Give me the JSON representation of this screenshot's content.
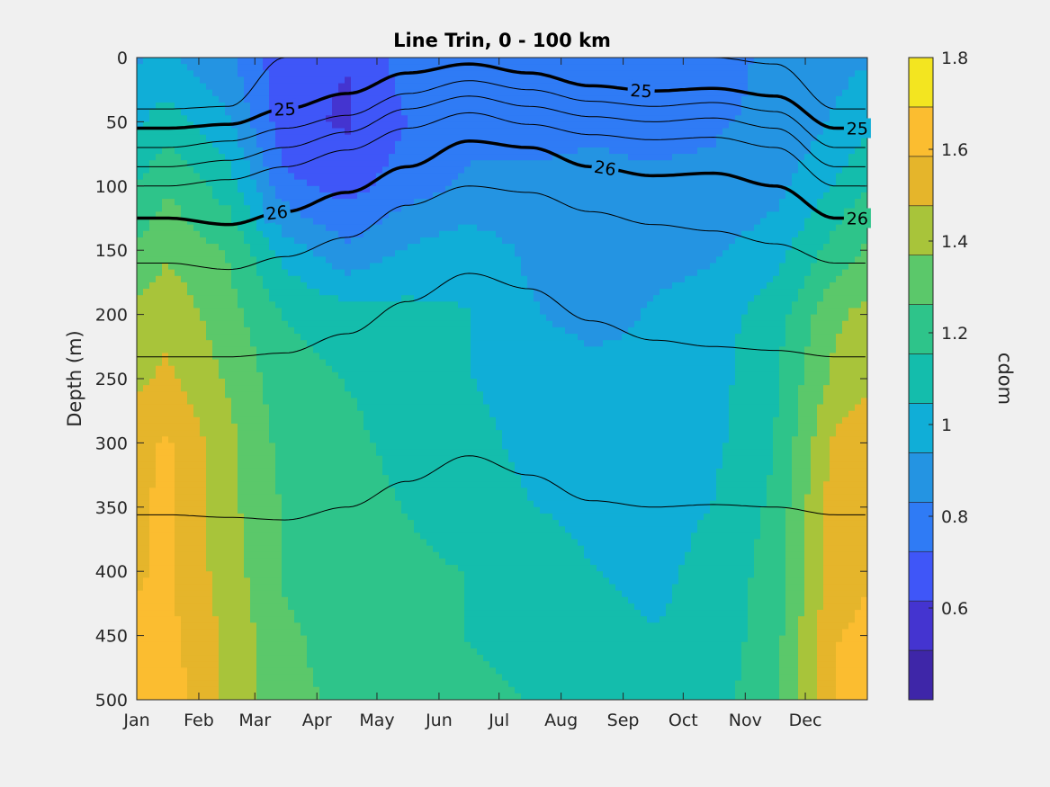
{
  "chart_data": {
    "type": "heatmap",
    "title": "Line Trin, 0 - 100 km",
    "xlabel": "",
    "ylabel": "Depth (m)",
    "colorbar_label": "cdom",
    "x_ticks": [
      "Jan",
      "Feb",
      "Mar",
      "Apr",
      "May",
      "Jun",
      "Jul",
      "Aug",
      "Sep",
      "Oct",
      "Nov",
      "Dec"
    ],
    "x_tick_days": [
      1,
      32,
      60,
      91,
      121,
      152,
      182,
      213,
      244,
      274,
      305,
      335
    ],
    "xlim": [
      1,
      366
    ],
    "y_ticks": [
      0,
      50,
      100,
      150,
      200,
      250,
      300,
      350,
      400,
      450,
      500
    ],
    "ylim": [
      0,
      500
    ],
    "y_reversed": true,
    "clim": [
      0.4,
      1.8
    ],
    "colorbar_ticks": [
      0.6,
      0.8,
      1,
      1.2,
      1.4,
      1.6,
      1.8
    ],
    "colorbar_tick_labels": [
      "0.6",
      "0.8",
      "1",
      "1.2",
      "1.4",
      "1.6",
      "1.8"
    ],
    "colormap_levels": [
      "#3e26a8",
      "#4434d0",
      "#3f56f8",
      "#2f7bf5",
      "#2494e2",
      "#10aed7",
      "#14bdac",
      "#2ec48a",
      "#5bc86a",
      "#a8c43a",
      "#e5b52b",
      "#fbbd30",
      "#f3e520"
    ],
    "cdom_grid": {
      "months": [
        "Jan",
        "Feb",
        "Mar",
        "Apr",
        "May",
        "Jun",
        "Jul",
        "Aug",
        "Sep",
        "Oct",
        "Nov",
        "Dec"
      ],
      "depths": [
        0,
        50,
        100,
        150,
        200,
        250,
        300,
        350,
        400,
        450,
        500
      ],
      "values": [
        [
          0.95,
          0.85,
          0.65,
          0.62,
          0.78,
          0.82,
          0.82,
          0.82,
          0.78,
          0.8,
          0.85,
          0.9
        ],
        [
          1.1,
          0.95,
          0.65,
          0.6,
          0.72,
          0.8,
          0.8,
          0.82,
          0.8,
          0.82,
          0.85,
          0.95
        ],
        [
          1.25,
          1.1,
          0.75,
          0.68,
          0.78,
          0.85,
          0.85,
          0.85,
          0.85,
          0.85,
          0.9,
          1.05
        ],
        [
          1.35,
          1.25,
          1.0,
          0.85,
          0.95,
          1.0,
          0.92,
          0.88,
          0.9,
          0.92,
          1.0,
          1.2
        ],
        [
          1.45,
          1.3,
          1.15,
          1.1,
          1.08,
          1.05,
          0.95,
          0.9,
          0.95,
          1.0,
          1.1,
          1.35
        ],
        [
          1.5,
          1.35,
          1.2,
          1.15,
          1.1,
          1.05,
          1.0,
          0.98,
          0.95,
          1.0,
          1.15,
          1.4
        ],
        [
          1.6,
          1.4,
          1.22,
          1.18,
          1.12,
          1.08,
          1.02,
          1.0,
          0.98,
          1.02,
          1.15,
          1.5
        ],
        [
          1.6,
          1.4,
          1.25,
          1.2,
          1.15,
          1.1,
          1.05,
          1.02,
          1.0,
          1.05,
          1.18,
          1.55
        ],
        [
          1.6,
          1.42,
          1.25,
          1.2,
          1.18,
          1.15,
          1.1,
          1.05,
          1.02,
          1.08,
          1.2,
          1.55
        ],
        [
          1.62,
          1.45,
          1.28,
          1.22,
          1.2,
          1.15,
          1.12,
          1.08,
          1.05,
          1.08,
          1.22,
          1.58
        ],
        [
          1.65,
          1.45,
          1.28,
          1.25,
          1.22,
          1.18,
          1.15,
          1.1,
          1.05,
          1.1,
          1.25,
          1.6
        ]
      ]
    },
    "isopycnals": [
      {
        "depths": [
          40,
          38,
          0,
          0,
          0,
          0,
          0,
          0,
          0,
          0,
          5,
          40
        ],
        "bold": false
      },
      {
        "label": "25",
        "depths": [
          55,
          52,
          40,
          28,
          12,
          5,
          12,
          22,
          26,
          24,
          30,
          55
        ],
        "bold": true
      },
      {
        "depths": [
          70,
          65,
          55,
          45,
          28,
          18,
          25,
          34,
          38,
          35,
          42,
          70
        ],
        "bold": false
      },
      {
        "depths": [
          85,
          80,
          70,
          58,
          40,
          30,
          38,
          46,
          50,
          47,
          55,
          85
        ],
        "bold": false
      },
      {
        "depths": [
          100,
          95,
          85,
          72,
          55,
          43,
          52,
          60,
          64,
          62,
          70,
          100
        ],
        "bold": false
      },
      {
        "label": "26",
        "depths": [
          125,
          130,
          120,
          105,
          85,
          65,
          70,
          85,
          92,
          90,
          100,
          125
        ],
        "bold": true
      },
      {
        "depths": [
          160,
          165,
          155,
          140,
          115,
          100,
          105,
          120,
          130,
          135,
          145,
          160
        ],
        "bold": false
      },
      {
        "depths": [
          233,
          233,
          230,
          215,
          190,
          168,
          180,
          205,
          220,
          225,
          228,
          233
        ],
        "bold": false
      },
      {
        "depths": [
          356,
          358,
          360,
          350,
          330,
          310,
          325,
          345,
          350,
          348,
          350,
          356
        ],
        "bold": false
      }
    ],
    "grid": false,
    "legend": "none"
  }
}
